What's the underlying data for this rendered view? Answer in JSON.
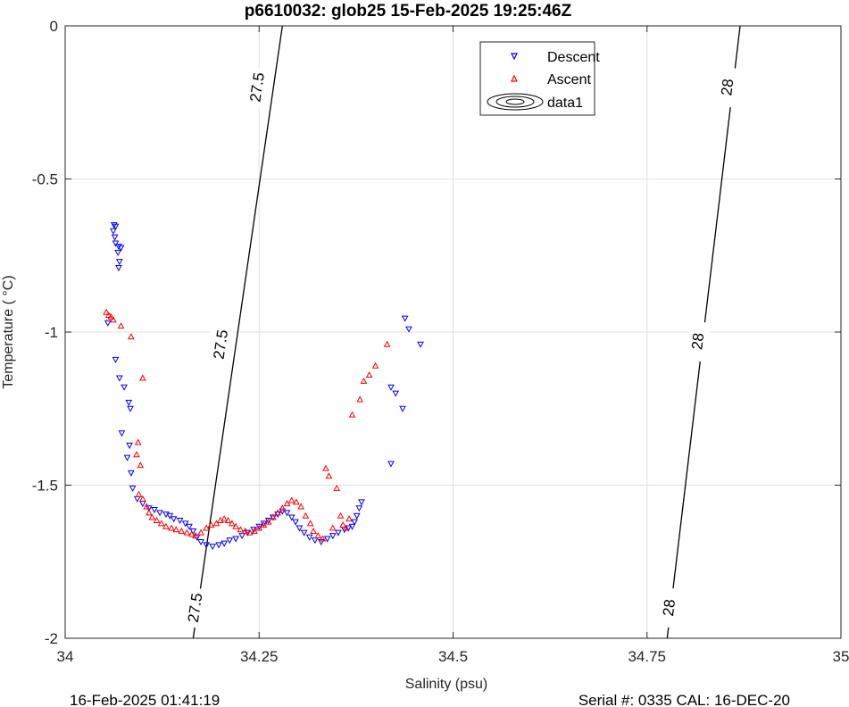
{
  "chart_data": {
    "type": "scatter",
    "title": "p6610032: glob25 15-Feb-2025 19:25:46Z",
    "xlabel": "Salinity (psu)",
    "ylabel": "Temperature (   °C)",
    "xlim": [
      34,
      35
    ],
    "ylim": [
      -2,
      0
    ],
    "x_ticks": [
      "34",
      "34.25",
      "34.5",
      "34.75",
      "35"
    ],
    "y_ticks": [
      "-2",
      "-1.5",
      "-1",
      "-0.5",
      "0"
    ],
    "grid": true,
    "legend_position": "top-center",
    "legend": [
      "Descent",
      "Ascent",
      "data1"
    ],
    "colors": {
      "descent": "#0000ff",
      "ascent": "#ff0000",
      "contour": "#000000",
      "grid": "#e0e0e0"
    },
    "contours": [
      {
        "label": "27.5",
        "points": [
          [
            34.165,
            -2
          ],
          [
            34.19,
            -1.55
          ],
          [
            34.215,
            -1.1
          ],
          [
            34.245,
            -0.55
          ],
          [
            34.255,
            -0.4
          ],
          [
            34.26,
            -0.3
          ],
          [
            34.25,
            -0.5
          ],
          [
            34.255,
            -0.42
          ],
          [
            34.265,
            -0.25
          ],
          [
            34.28,
            0
          ]
        ],
        "label_positions": [
          [
            34.167,
            -1.9
          ],
          [
            34.2,
            -1.04
          ],
          [
            34.247,
            -0.2
          ]
        ]
      },
      {
        "label": "28",
        "points": [
          [
            34.776,
            -2
          ],
          [
            34.8,
            -1.55
          ],
          [
            34.825,
            -1.1
          ],
          [
            34.845,
            -0.7
          ],
          [
            34.87,
            0
          ]
        ],
        "label_positions": [
          [
            34.778,
            -1.9
          ],
          [
            34.815,
            -1.03
          ],
          [
            34.853,
            -0.2
          ]
        ]
      }
    ],
    "series": [
      {
        "name": "Descent",
        "marker": "triangle-down",
        "points": [
          [
            34.063,
            -0.65
          ],
          [
            34.065,
            -0.655
          ],
          [
            34.062,
            -0.67
          ],
          [
            34.064,
            -0.69
          ],
          [
            34.065,
            -0.71
          ],
          [
            34.069,
            -0.72
          ],
          [
            34.072,
            -0.725
          ],
          [
            34.068,
            -0.74
          ],
          [
            34.07,
            -0.77
          ],
          [
            34.069,
            -0.79
          ],
          [
            34.055,
            -0.97
          ],
          [
            34.065,
            -1.09
          ],
          [
            34.07,
            -1.15
          ],
          [
            34.076,
            -1.18
          ],
          [
            34.082,
            -1.23
          ],
          [
            34.084,
            -1.25
          ],
          [
            34.073,
            -1.33
          ],
          [
            34.083,
            -1.37
          ],
          [
            34.08,
            -1.41
          ],
          [
            34.085,
            -1.46
          ],
          [
            34.087,
            -1.51
          ],
          [
            34.093,
            -1.545
          ],
          [
            34.1,
            -1.56
          ],
          [
            34.108,
            -1.575
          ],
          [
            34.115,
            -1.58
          ],
          [
            34.122,
            -1.59
          ],
          [
            34.13,
            -1.595
          ],
          [
            34.135,
            -1.6
          ],
          [
            34.14,
            -1.61
          ],
          [
            34.148,
            -1.615
          ],
          [
            34.155,
            -1.625
          ],
          [
            34.16,
            -1.635
          ],
          [
            34.165,
            -1.65
          ],
          [
            34.17,
            -1.67
          ],
          [
            34.175,
            -1.685
          ],
          [
            34.182,
            -1.695
          ],
          [
            34.19,
            -1.7
          ],
          [
            34.198,
            -1.695
          ],
          [
            34.205,
            -1.69
          ],
          [
            34.212,
            -1.68
          ],
          [
            34.22,
            -1.675
          ],
          [
            34.228,
            -1.665
          ],
          [
            34.235,
            -1.655
          ],
          [
            34.243,
            -1.645
          ],
          [
            34.25,
            -1.635
          ],
          [
            34.256,
            -1.625
          ],
          [
            34.262,
            -1.615
          ],
          [
            34.268,
            -1.605
          ],
          [
            34.274,
            -1.595
          ],
          [
            34.28,
            -1.585
          ],
          [
            34.286,
            -1.59
          ],
          [
            34.292,
            -1.605
          ],
          [
            34.297,
            -1.62
          ],
          [
            34.302,
            -1.64
          ],
          [
            34.308,
            -1.655
          ],
          [
            34.315,
            -1.67
          ],
          [
            34.322,
            -1.68
          ],
          [
            34.33,
            -1.685
          ],
          [
            34.338,
            -1.675
          ],
          [
            34.345,
            -1.665
          ],
          [
            34.352,
            -1.655
          ],
          [
            34.36,
            -1.645
          ],
          [
            34.365,
            -1.64
          ],
          [
            34.37,
            -1.635
          ],
          [
            34.373,
            -1.62
          ],
          [
            34.376,
            -1.6
          ],
          [
            34.379,
            -1.575
          ],
          [
            34.382,
            -1.555
          ],
          [
            34.42,
            -1.43
          ],
          [
            34.42,
            -1.18
          ],
          [
            34.426,
            -1.2
          ],
          [
            34.435,
            -1.25
          ],
          [
            34.438,
            -0.955
          ],
          [
            34.443,
            -0.99
          ],
          [
            34.458,
            -1.04
          ]
        ]
      },
      {
        "name": "Ascent",
        "marker": "triangle-up",
        "points": [
          [
            34.053,
            -0.935
          ],
          [
            34.056,
            -0.945
          ],
          [
            34.059,
            -0.95
          ],
          [
            34.062,
            -0.96
          ],
          [
            34.072,
            -0.98
          ],
          [
            34.085,
            -1.015
          ],
          [
            34.1,
            -1.15
          ],
          [
            34.094,
            -1.36
          ],
          [
            34.092,
            -1.4
          ],
          [
            34.097,
            -1.435
          ],
          [
            34.095,
            -1.53
          ],
          [
            34.1,
            -1.545
          ],
          [
            34.105,
            -1.57
          ],
          [
            34.108,
            -1.59
          ],
          [
            34.112,
            -1.605
          ],
          [
            34.118,
            -1.615
          ],
          [
            34.124,
            -1.625
          ],
          [
            34.13,
            -1.635
          ],
          [
            34.137,
            -1.64
          ],
          [
            34.143,
            -1.645
          ],
          [
            34.15,
            -1.65
          ],
          [
            34.157,
            -1.655
          ],
          [
            34.163,
            -1.66
          ],
          [
            34.168,
            -1.665
          ],
          [
            34.175,
            -1.655
          ],
          [
            34.182,
            -1.64
          ],
          [
            34.188,
            -1.63
          ],
          [
            34.195,
            -1.625
          ],
          [
            34.2,
            -1.615
          ],
          [
            34.205,
            -1.61
          ],
          [
            34.21,
            -1.615
          ],
          [
            34.215,
            -1.625
          ],
          [
            34.22,
            -1.635
          ],
          [
            34.226,
            -1.645
          ],
          [
            34.232,
            -1.65
          ],
          [
            34.238,
            -1.655
          ],
          [
            34.244,
            -1.65
          ],
          [
            34.25,
            -1.64
          ],
          [
            34.256,
            -1.63
          ],
          [
            34.262,
            -1.62
          ],
          [
            34.268,
            -1.605
          ],
          [
            34.274,
            -1.59
          ],
          [
            34.28,
            -1.575
          ],
          [
            34.286,
            -1.56
          ],
          [
            34.292,
            -1.55
          ],
          [
            34.298,
            -1.555
          ],
          [
            34.304,
            -1.57
          ],
          [
            34.31,
            -1.6
          ],
          [
            34.316,
            -1.625
          ],
          [
            34.32,
            -1.65
          ],
          [
            34.326,
            -1.665
          ],
          [
            34.332,
            -1.675
          ],
          [
            34.336,
            -1.445
          ],
          [
            34.34,
            -1.47
          ],
          [
            34.345,
            -1.64
          ],
          [
            34.35,
            -1.51
          ],
          [
            34.355,
            -1.6
          ],
          [
            34.358,
            -1.63
          ],
          [
            34.362,
            -1.64
          ],
          [
            34.366,
            -1.61
          ],
          [
            34.37,
            -1.27
          ],
          [
            34.38,
            -1.22
          ],
          [
            34.385,
            -1.16
          ],
          [
            34.392,
            -1.14
          ],
          [
            34.4,
            -1.11
          ],
          [
            34.415,
            -1.04
          ]
        ]
      }
    ]
  },
  "footer": {
    "left": "16-Feb-2025 01:41:19",
    "right": "Serial #: 0335  CAL: 16-DEC-20"
  }
}
